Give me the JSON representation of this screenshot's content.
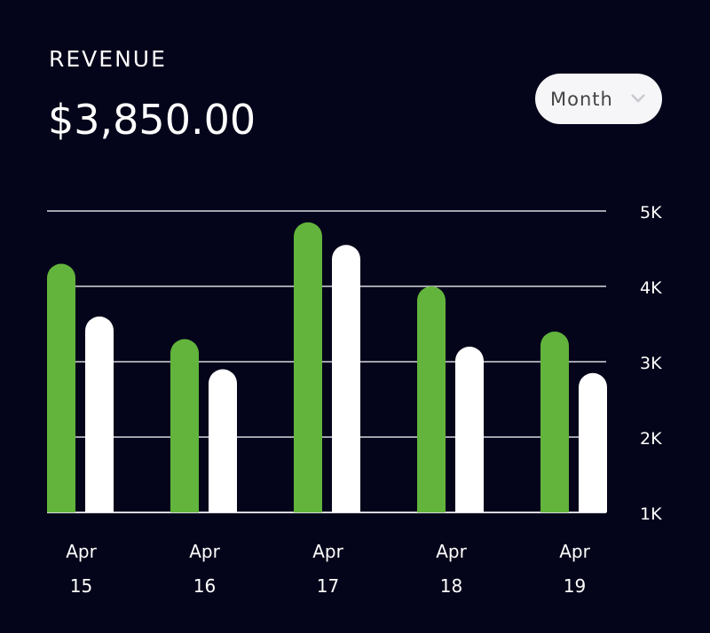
{
  "header": {
    "title": "REVENUE",
    "amount": "$3,850.00"
  },
  "period_select": {
    "selected": "Month",
    "icon": "chevron-down-icon"
  },
  "chart_data": {
    "type": "bar",
    "categories": [
      [
        "Apr",
        "15"
      ],
      [
        "Apr",
        "16"
      ],
      [
        "Apr",
        "17"
      ],
      [
        "Apr",
        "18"
      ],
      [
        "Apr",
        "19"
      ]
    ],
    "series": [
      {
        "values": [
          4300,
          3300,
          4850,
          4000,
          3400
        ],
        "color": "#62b43c"
      },
      {
        "values": [
          3600,
          2900,
          4550,
          3200,
          2850
        ],
        "color": "#ffffff"
      }
    ],
    "ylim": [
      1000,
      5000
    ],
    "yticks": [
      {
        "v": 5000,
        "label": "5K"
      },
      {
        "v": 4000,
        "label": "4K"
      },
      {
        "v": 3000,
        "label": "3K"
      },
      {
        "v": 2000,
        "label": "2K"
      },
      {
        "v": 1000,
        "label": "1K"
      }
    ],
    "y_axis_position": "right",
    "grid": true
  }
}
